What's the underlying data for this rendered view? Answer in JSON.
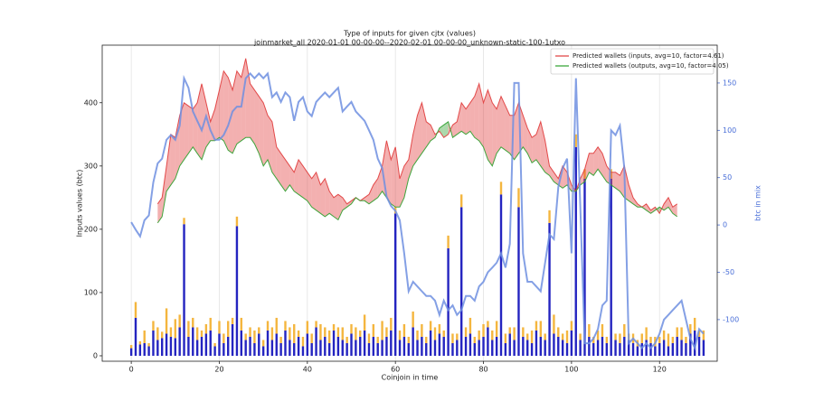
{
  "chart_data": {
    "type": "line",
    "title": "Type of inputs for given cjtx (values)",
    "subtitle": "joinmarket_all 2020-01-01 00-00-00--2020-02-01 00-00-00_unknown-static-100-1utxo",
    "x_label": "Coinjoin in time",
    "y_label": "Inputs values (btc)",
    "y2_label": "btc in mix",
    "xlim": [
      -6.6,
      133.1
    ],
    "ylim": [
      -8.6,
      491
    ],
    "y2lim": [
      -144,
      190
    ],
    "xticks": [
      0,
      20,
      40,
      60,
      80,
      100,
      120
    ],
    "yticks": [
      0,
      100,
      200,
      300,
      400
    ],
    "y2ticks": [
      -100,
      -50,
      0,
      50,
      100,
      150
    ],
    "grid": true,
    "legend": "upper right",
    "x": [
      0,
      1,
      2,
      3,
      4,
      5,
      6,
      7,
      8,
      9,
      10,
      11,
      12,
      13,
      14,
      15,
      16,
      17,
      18,
      19,
      20,
      21,
      22,
      23,
      24,
      25,
      26,
      27,
      28,
      29,
      30,
      31,
      32,
      33,
      34,
      35,
      36,
      37,
      38,
      39,
      40,
      41,
      42,
      43,
      44,
      45,
      46,
      47,
      48,
      49,
      50,
      51,
      52,
      53,
      54,
      55,
      56,
      57,
      58,
      59,
      60,
      61,
      62,
      63,
      64,
      65,
      66,
      67,
      68,
      69,
      70,
      71,
      72,
      73,
      74,
      75,
      76,
      77,
      78,
      79,
      80,
      81,
      82,
      83,
      84,
      85,
      86,
      87,
      88,
      89,
      90,
      91,
      92,
      93,
      94,
      95,
      96,
      97,
      98,
      99,
      100,
      101,
      102,
      103,
      104,
      105,
      106,
      107,
      108,
      109,
      110,
      111,
      112,
      113,
      114,
      115,
      116,
      117,
      118,
      119,
      120,
      121,
      122,
      123,
      124,
      125,
      126,
      127,
      128,
      129,
      130
    ],
    "series": [
      {
        "name": "Predicted wallets (inputs, avg=10, factor=4.61)",
        "color": "#e03a3a",
        "x": [
          6,
          7,
          8,
          9,
          10,
          11,
          12,
          13,
          14,
          15,
          16,
          17,
          18,
          19,
          20,
          21,
          22,
          23,
          24,
          25,
          26,
          27,
          28,
          29,
          30,
          31,
          32,
          33,
          34,
          35,
          36,
          37,
          38,
          39,
          40,
          41,
          42,
          43,
          44,
          45,
          46,
          47,
          48,
          49,
          50,
          51,
          52,
          53,
          54,
          55,
          56,
          57,
          58,
          59,
          60,
          61,
          62,
          63,
          64,
          65,
          66,
          67,
          68,
          69,
          70,
          71,
          72,
          73,
          74,
          75,
          76,
          77,
          78,
          79,
          80,
          81,
          82,
          83,
          84,
          85,
          86,
          87,
          88,
          89,
          90,
          91,
          92,
          93,
          94,
          95,
          96,
          97,
          98,
          99,
          100,
          101,
          102,
          103,
          104,
          105,
          106,
          107,
          108,
          109,
          110,
          111,
          112,
          113,
          114,
          115,
          116,
          117,
          118,
          119,
          120,
          121,
          122,
          123,
          124
        ],
        "values": [
          240,
          250,
          300,
          350,
          345,
          380,
          400,
          395,
          390,
          400,
          430,
          400,
          370,
          390,
          420,
          450,
          440,
          420,
          450,
          440,
          470,
          430,
          420,
          410,
          400,
          380,
          370,
          330,
          320,
          310,
          300,
          290,
          310,
          300,
          290,
          280,
          290,
          270,
          280,
          260,
          250,
          255,
          250,
          240,
          245,
          250,
          245,
          250,
          255,
          270,
          280,
          300,
          340,
          310,
          330,
          280,
          300,
          310,
          350,
          380,
          400,
          370,
          365,
          350,
          355,
          345,
          350,
          365,
          370,
          400,
          390,
          400,
          410,
          430,
          400,
          420,
          400,
          390,
          410,
          395,
          380,
          380,
          400,
          380,
          360,
          345,
          350,
          370,
          340,
          300,
          290,
          280,
          300,
          290,
          270,
          260,
          280,
          295,
          320,
          320,
          330,
          320,
          300,
          290,
          290,
          285,
          300,
          270,
          250,
          240,
          235,
          240,
          230,
          235,
          225,
          240,
          250,
          235,
          240
        ]
      },
      {
        "name": "Predicted wallets (outputs, avg=10, factor=4.05)",
        "color": "#2ca02c",
        "x": [
          6,
          7,
          8,
          9,
          10,
          11,
          12,
          13,
          14,
          15,
          16,
          17,
          18,
          19,
          20,
          21,
          22,
          23,
          24,
          25,
          26,
          27,
          28,
          29,
          30,
          31,
          32,
          33,
          34,
          35,
          36,
          37,
          38,
          39,
          40,
          41,
          42,
          43,
          44,
          45,
          46,
          47,
          48,
          49,
          50,
          51,
          52,
          53,
          54,
          55,
          56,
          57,
          58,
          59,
          60,
          61,
          62,
          63,
          64,
          65,
          66,
          67,
          68,
          69,
          70,
          71,
          72,
          73,
          74,
          75,
          76,
          77,
          78,
          79,
          80,
          81,
          82,
          83,
          84,
          85,
          86,
          87,
          88,
          89,
          90,
          91,
          92,
          93,
          94,
          95,
          96,
          97,
          98,
          99,
          100,
          101,
          102,
          103,
          104,
          105,
          106,
          107,
          108,
          109,
          110,
          111,
          112,
          113,
          114,
          115,
          116,
          117,
          118,
          119,
          120,
          121,
          122,
          123,
          124
        ],
        "values": [
          210,
          220,
          260,
          270,
          280,
          300,
          310,
          320,
          330,
          320,
          310,
          330,
          340,
          340,
          345,
          340,
          325,
          320,
          335,
          340,
          345,
          345,
          335,
          320,
          300,
          310,
          290,
          280,
          270,
          260,
          270,
          260,
          255,
          250,
          245,
          235,
          230,
          225,
          220,
          225,
          220,
          215,
          230,
          235,
          240,
          250,
          245,
          245,
          240,
          245,
          250,
          260,
          250,
          240,
          235,
          235,
          250,
          280,
          300,
          310,
          320,
          330,
          340,
          345,
          360,
          365,
          370,
          345,
          350,
          355,
          350,
          355,
          345,
          340,
          330,
          310,
          300,
          320,
          330,
          325,
          320,
          310,
          320,
          330,
          320,
          305,
          310,
          300,
          290,
          285,
          275,
          270,
          265,
          270,
          260,
          260,
          270,
          275,
          290,
          285,
          295,
          285,
          275,
          270,
          265,
          260,
          250,
          245,
          240,
          235,
          235,
          230,
          225,
          230,
          235,
          230,
          235,
          225,
          220
        ]
      },
      {
        "color": "#6f8fe0",
        "axis": "y2",
        "values": [
          3,
          -5,
          -12,
          5,
          10,
          45,
          65,
          70,
          90,
          95,
          90,
          105,
          155,
          145,
          120,
          110,
          100,
          115,
          100,
          90,
          90,
          95,
          105,
          120,
          125,
          125,
          155,
          160,
          155,
          160,
          155,
          160,
          135,
          140,
          130,
          140,
          135,
          110,
          130,
          135,
          120,
          115,
          130,
          135,
          140,
          135,
          140,
          145,
          120,
          125,
          130,
          120,
          115,
          110,
          100,
          90,
          70,
          60,
          30,
          20,
          15,
          5,
          -30,
          -70,
          -60,
          -65,
          -70,
          -75,
          -75,
          -80,
          -95,
          -80,
          -90,
          -85,
          -95,
          -90,
          -75,
          -75,
          -80,
          -65,
          -60,
          -50,
          -45,
          -40,
          -30,
          -45,
          -20,
          150,
          150,
          -30,
          -60,
          -60,
          -65,
          -70,
          -40,
          -10,
          -15,
          40,
          60,
          70,
          -30,
          155,
          20,
          -125,
          -125,
          -120,
          -110,
          -85,
          -80,
          100,
          95,
          105,
          60,
          -125,
          -120,
          -125,
          -130,
          -125,
          -130,
          -125,
          -115,
          -100,
          -95,
          -90,
          -85,
          -80,
          -100,
          -120,
          -130,
          -110,
          -115
        ]
      }
    ],
    "bars": [
      {
        "color": "#2424c0",
        "values": [
          12,
          60,
          18,
          20,
          15,
          40,
          25,
          28,
          35,
          30,
          28,
          45,
          208,
          30,
          45,
          25,
          30,
          35,
          40,
          15,
          35,
          20,
          30,
          50,
          205,
          40,
          25,
          30,
          20,
          35,
          15,
          40,
          25,
          35,
          20,
          40,
          25,
          20,
          30,
          15,
          35,
          20,
          45,
          25,
          30,
          20,
          40,
          30,
          25,
          20,
          35,
          25,
          30,
          40,
          20,
          30,
          20,
          25,
          30,
          40,
          225,
          25,
          30,
          20,
          45,
          25,
          30,
          20,
          40,
          25,
          35,
          30,
          170,
          20,
          25,
          235,
          30,
          35,
          20,
          25,
          30,
          45,
          25,
          30,
          255,
          20,
          35,
          25,
          235,
          30,
          25,
          20,
          40,
          30,
          25,
          210,
          35,
          30,
          25,
          20,
          40,
          330,
          25,
          280,
          30,
          20,
          25,
          30,
          20,
          280,
          25,
          20,
          30,
          25,
          20,
          15,
          20,
          25,
          20,
          15,
          20,
          25,
          15,
          20,
          30,
          25,
          20,
          35,
          40,
          30,
          25
        ]
      },
      {
        "color": "#f4b63f",
        "values": [
          5,
          25,
          5,
          20,
          5,
          15,
          20,
          10,
          40,
          15,
          30,
          20,
          10,
          25,
          15,
          20,
          10,
          15,
          20,
          5,
          20,
          15,
          25,
          10,
          15,
          20,
          10,
          15,
          20,
          10,
          10,
          15,
          20,
          25,
          10,
          15,
          20,
          30,
          10,
          15,
          20,
          15,
          10,
          25,
          15,
          20,
          10,
          15,
          20,
          10,
          15,
          20,
          10,
          25,
          15,
          20,
          10,
          30,
          15,
          20,
          10,
          15,
          20,
          10,
          25,
          15,
          20,
          10,
          15,
          20,
          15,
          10,
          20,
          15,
          10,
          20,
          15,
          25,
          10,
          15,
          20,
          10,
          15,
          25,
          20,
          15,
          10,
          20,
          30,
          15,
          10,
          20,
          15,
          25,
          10,
          20,
          30,
          15,
          10,
          20,
          15,
          20,
          10,
          15,
          20,
          10,
          15,
          20,
          10,
          15,
          10,
          15,
          20,
          10,
          15,
          10,
          15,
          20,
          10,
          15,
          10,
          15,
          20,
          10,
          15,
          20,
          10,
          15,
          20,
          10,
          15
        ]
      }
    ]
  }
}
